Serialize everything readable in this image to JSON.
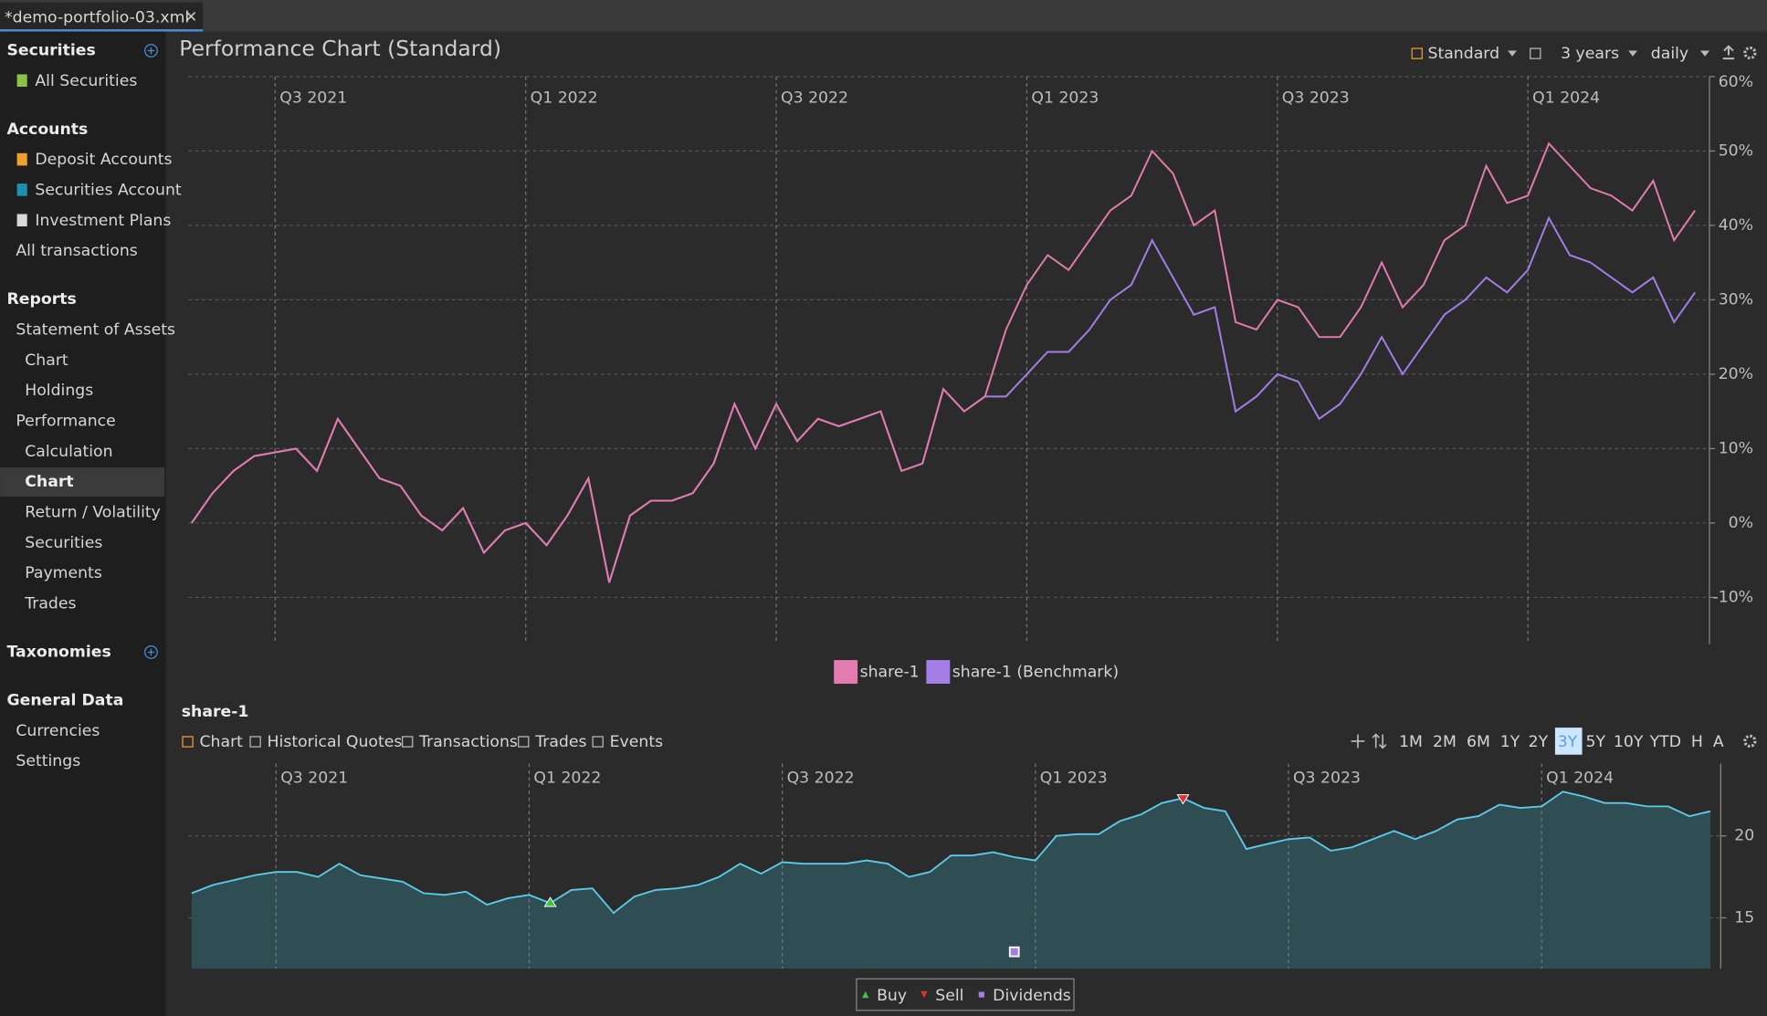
{
  "tab": "*demo-portfolio-03.xml",
  "sidebar": [
    {
      "heading": "Securities",
      "items": [
        "All Securities"
      ]
    },
    {
      "heading": "Accounts",
      "items": [
        "Deposit Accounts",
        "Securities Account",
        "Investment Plans",
        "All transactions"
      ]
    },
    {
      "heading": "Reports",
      "items": [
        {
          "label": "Statement of Assets",
          "children": [
            "Chart",
            "Holdings"
          ]
        },
        {
          "label": "Performance",
          "children": [
            "Calculation",
            "Chart",
            "Return / Volatility",
            "Securities",
            "Payments",
            "Trades"
          ]
        }
      ]
    },
    {
      "heading": "Taxonomies",
      "items": []
    },
    {
      "heading": "General Data",
      "items": [
        "Currencies",
        "Settings"
      ]
    }
  ],
  "toolbar": {
    "view": "Standard",
    "period": "3 years",
    "interval": "daily"
  },
  "tabs": [
    "Chart",
    "Historical Quotes",
    "Transactions",
    "Trades",
    "Events"
  ],
  "ranges": [
    "1M",
    "2M",
    "6M",
    "1Y",
    "2Y",
    "3Y",
    "5Y",
    "10Y",
    "YTD",
    "H",
    "A"
  ],
  "chart_data": [
    {
      "type": "line",
      "title": "Performance Chart (Standard)",
      "grid": true,
      "xlim": [
        0,
        72
      ],
      "xticks": [
        {
          "value": 4,
          "label": "Q3 2021"
        },
        {
          "value": 16,
          "label": "Q1 2022"
        },
        {
          "value": 28,
          "label": "Q3 2022"
        },
        {
          "value": 40,
          "label": "Q1 2023"
        },
        {
          "value": 52,
          "label": "Q3 2023"
        },
        {
          "value": 64,
          "label": "Q1 2024"
        }
      ],
      "ylim": [
        -16,
        60
      ],
      "yticks": [
        {
          "value": -10,
          "label": "-10%"
        },
        {
          "value": 0,
          "label": "0%"
        },
        {
          "value": 10,
          "label": "10%"
        },
        {
          "value": 20,
          "label": "20%"
        },
        {
          "value": 30,
          "label": "30%"
        },
        {
          "value": 40,
          "label": "40%"
        },
        {
          "value": 50,
          "label": "50%"
        },
        {
          "value": 60,
          "label": "60%"
        }
      ],
      "series": [
        {
          "name": "share-1",
          "color": "#e37bb0",
          "values": [
            0,
            4,
            7,
            9,
            9.5,
            10,
            7,
            14,
            10,
            6,
            5,
            1,
            -1,
            2,
            -4,
            -1,
            0,
            -3,
            1,
            6,
            -8,
            1,
            3,
            3,
            4,
            8,
            16,
            10,
            16,
            11,
            14,
            13,
            14,
            15,
            7,
            8,
            18,
            15,
            17,
            26,
            32,
            36,
            34,
            38,
            42,
            44,
            50,
            47,
            40,
            42,
            27,
            26,
            30,
            29,
            25,
            25,
            29,
            35,
            29,
            32,
            38,
            40,
            48,
            43,
            44,
            51,
            48,
            45,
            44,
            42,
            46,
            38,
            42
          ]
        },
        {
          "name": "share-1 (Benchmark)",
          "color": "#a57de6",
          "values": [
            0,
            4,
            7,
            9,
            9.5,
            10,
            7,
            14,
            10,
            6,
            5,
            1,
            -1,
            2,
            -4,
            -1,
            0,
            -3,
            1,
            6,
            -8,
            1,
            3,
            3,
            4,
            8,
            16,
            10,
            16,
            11,
            14,
            13,
            14,
            15,
            7,
            8,
            18,
            15,
            17,
            17,
            20,
            23,
            23,
            26,
            30,
            32,
            38,
            33,
            28,
            29,
            15,
            17,
            20,
            19,
            14,
            16,
            20,
            25,
            20,
            24,
            28,
            30,
            33,
            31,
            34,
            41,
            36,
            35,
            33,
            31,
            33,
            27,
            31
          ]
        }
      ]
    },
    {
      "type": "area",
      "title": "share-1",
      "grid": true,
      "xlim": [
        0,
        72
      ],
      "xticks": [
        {
          "value": 4,
          "label": "Q3 2021"
        },
        {
          "value": 16,
          "label": "Q1 2022"
        },
        {
          "value": 28,
          "label": "Q3 2022"
        },
        {
          "value": 40,
          "label": "Q1 2023"
        },
        {
          "value": 52,
          "label": "Q3 2023"
        },
        {
          "value": 64,
          "label": "Q1 2024"
        }
      ],
      "ylim": [
        11.9,
        24.4
      ],
      "yticks": [
        15,
        20
      ],
      "color": "#5ccbe9",
      "fill": "#2f4e54",
      "values": [
        16.5,
        17,
        17.3,
        17.6,
        17.8,
        17.8,
        17.5,
        18.3,
        17.6,
        17.4,
        17.2,
        16.5,
        16.4,
        16.6,
        15.8,
        16.2,
        16.4,
        15.9,
        16.7,
        16.8,
        15.3,
        16.3,
        16.7,
        16.8,
        17,
        17.5,
        18.3,
        17.7,
        18.4,
        18.3,
        18.3,
        18.3,
        18.5,
        18.3,
        17.5,
        17.8,
        18.8,
        18.8,
        19,
        18.7,
        18.5,
        20,
        20.1,
        20.1,
        20.9,
        21.3,
        22,
        22.3,
        21.7,
        21.5,
        19.2,
        19.5,
        19.8,
        19.9,
        19.1,
        19.3,
        19.8,
        20.3,
        19.8,
        20.3,
        21,
        21.2,
        21.9,
        21.7,
        21.8,
        22.7,
        22.4,
        22,
        22,
        21.8,
        21.8,
        21.2,
        21.5
      ],
      "markers": {
        "buy": {
          "x": 17,
          "value": 15.9
        },
        "sell": {
          "x": 47,
          "value": 22.3
        },
        "dividend": {
          "x": 39
        }
      },
      "legend": [
        {
          "name": "Buy",
          "color": "#3fc33f"
        },
        {
          "name": "Sell",
          "color": "#e03030"
        },
        {
          "name": "Dividends",
          "color": "#a57de6"
        }
      ]
    }
  ]
}
